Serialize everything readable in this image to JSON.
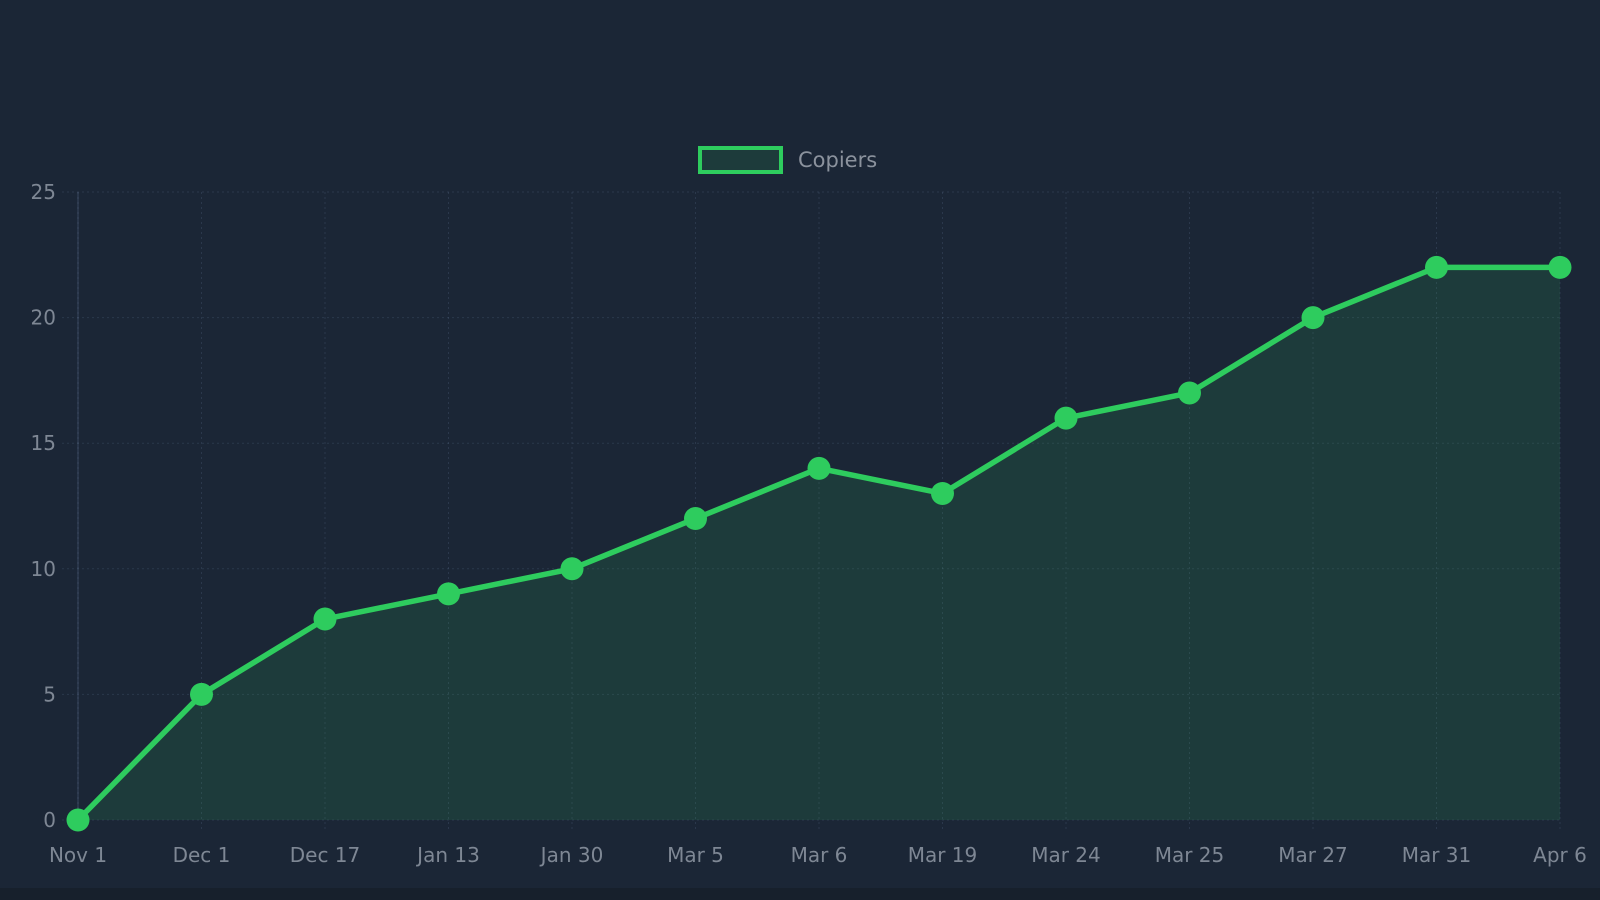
{
  "legend": {
    "label": "Copiers"
  },
  "chart_data": {
    "type": "area",
    "title": "",
    "xlabel": "",
    "ylabel": "",
    "categories": [
      "Nov 1",
      "Dec 1",
      "Dec 17",
      "Jan 13",
      "Jan 30",
      "Mar 5",
      "Mar 6",
      "Mar 19",
      "Mar 24",
      "Mar 25",
      "Mar 27",
      "Mar 31",
      "Apr 6"
    ],
    "series": [
      {
        "name": "Copiers",
        "values": [
          0,
          5,
          8,
          9,
          10,
          12,
          14,
          13,
          16,
          17,
          20,
          22,
          22
        ]
      }
    ],
    "y_ticks": [
      0,
      5,
      10,
      15,
      20,
      25
    ],
    "ylim": [
      0,
      25
    ],
    "grid": true,
    "grid_style": "dotted",
    "legend_position": "top-center",
    "marker": "circle",
    "colors": {
      "line": "#2ecc5e",
      "fill": "rgba(46,204,94,0.13)",
      "background": "#1b2636",
      "grid": "rgba(130,155,195,0.16)",
      "axis_line": "rgba(130,155,195,0.28)",
      "tick_label": "#7e8794",
      "legend_text": "#8b929d"
    }
  }
}
